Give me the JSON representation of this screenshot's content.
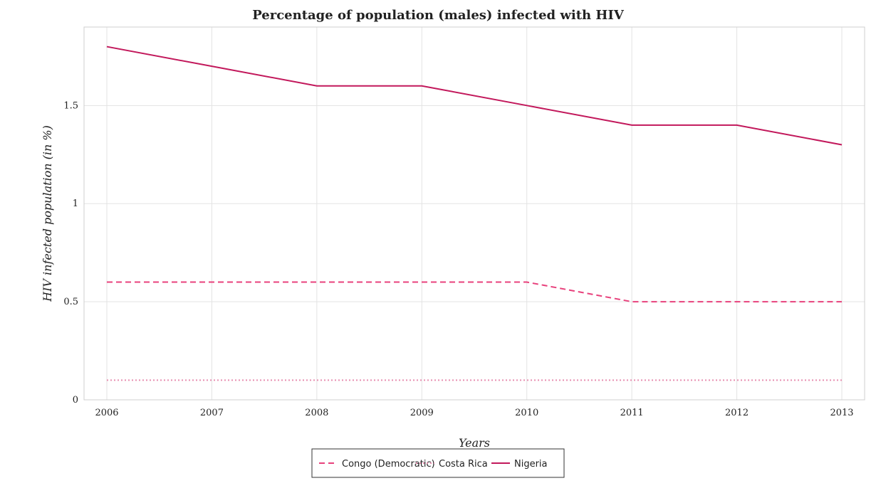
{
  "chart_data": {
    "type": "line",
    "title": "Percentage of population (males) infected with HIV",
    "xlabel": "Years",
    "ylabel": "HIV infected population (in %)",
    "categories": [
      "2006",
      "2007",
      "2008",
      "2009",
      "2010",
      "2011",
      "2012",
      "2013"
    ],
    "ylim": [
      0,
      1.9
    ],
    "yticks": [
      0,
      0.5,
      1,
      1.5
    ],
    "ytick_labels": [
      "0",
      "0.5",
      "1",
      "1.5"
    ],
    "grid": true,
    "legend_position": "bottom-center",
    "series": [
      {
        "name": "Congo (Democratic)",
        "values": [
          0.6,
          0.6,
          0.6,
          0.6,
          0.6,
          0.5,
          0.5,
          0.5
        ],
        "color": "#e8417c",
        "style": "dashed"
      },
      {
        "name": "Costa Rica",
        "values": [
          0.1,
          0.1,
          0.1,
          0.1,
          0.1,
          0.1,
          0.1,
          0.1
        ],
        "color": "#e88fb0",
        "style": "dotted"
      },
      {
        "name": "Nigeria",
        "values": [
          1.8,
          1.7,
          1.6,
          1.6,
          1.5,
          1.4,
          1.4,
          1.3
        ],
        "color": "#c2185b",
        "style": "solid"
      }
    ]
  }
}
